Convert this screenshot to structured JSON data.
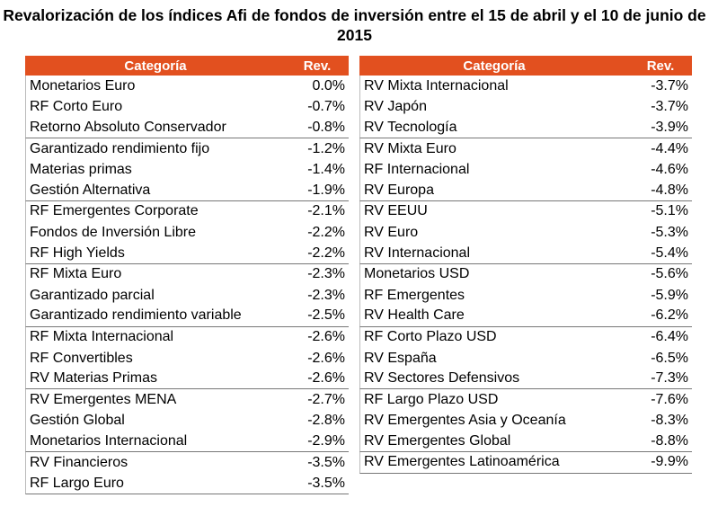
{
  "title": "Revalorización de los índices Afi de fondos de inversión entre el 15 de abril y el 10 de junio de 2015",
  "tables": [
    {
      "header": [
        "Categoría",
        "Rev."
      ],
      "rows": [
        [
          "Monetarios Euro",
          "0.0%"
        ],
        [
          "RF Corto Euro",
          "-0.7%"
        ],
        [
          "Retorno Absoluto Conservador",
          "-0.8%"
        ],
        [
          "Garantizado rendimiento fijo",
          "-1.2%"
        ],
        [
          "Materias primas",
          "-1.4%"
        ],
        [
          "Gestión Alternativa",
          "-1.9%"
        ],
        [
          "RF Emergentes Corporate",
          "-2.1%"
        ],
        [
          "Fondos de Inversión Libre",
          "-2.2%"
        ],
        [
          "RF High Yields",
          "-2.2%"
        ],
        [
          "RF Mixta Euro",
          "-2.3%"
        ],
        [
          "Garantizado parcial",
          "-2.3%"
        ],
        [
          "Garantizado rendimiento variable",
          "-2.5%"
        ],
        [
          "RF Mixta Internacional",
          "-2.6%"
        ],
        [
          "RF Convertibles",
          "-2.6%"
        ],
        [
          "RV Materias Primas",
          "-2.6%"
        ],
        [
          "RV Emergentes MENA",
          "-2.7%"
        ],
        [
          "Gestión Global",
          "-2.8%"
        ],
        [
          "Monetarios Internacional",
          "-2.9%"
        ],
        [
          "RV Financieros",
          "-3.5%"
        ],
        [
          "RF Largo Euro",
          "-3.5%"
        ]
      ]
    },
    {
      "header": [
        "Categoría",
        "Rev."
      ],
      "rows": [
        [
          "RV Mixta Internacional",
          "-3.7%"
        ],
        [
          "RV Japón",
          "-3.7%"
        ],
        [
          "RV Tecnología",
          "-3.9%"
        ],
        [
          "RV Mixta Euro",
          "-4.4%"
        ],
        [
          "RF Internacional",
          "-4.6%"
        ],
        [
          "RV Europa",
          "-4.8%"
        ],
        [
          "RV EEUU",
          "-5.1%"
        ],
        [
          "RV Euro",
          "-5.3%"
        ],
        [
          "RV Internacional",
          "-5.4%"
        ],
        [
          "Monetarios USD",
          "-5.6%"
        ],
        [
          "RF Emergentes",
          "-5.9%"
        ],
        [
          "RV Health Care",
          "-6.2%"
        ],
        [
          "RF Corto Plazo USD",
          "-6.4%"
        ],
        [
          "RV España",
          "-6.5%"
        ],
        [
          "RV Sectores Defensivos",
          "-7.3%"
        ],
        [
          "RF Largo Plazo USD",
          "-7.6%"
        ],
        [
          "RV Emergentes Asia y Oceanía",
          "-8.3%"
        ],
        [
          "RV Emergentes Global",
          "-8.8%"
        ],
        [
          "RV Emergentes Latinoamérica",
          "-9.9%"
        ]
      ]
    }
  ]
}
